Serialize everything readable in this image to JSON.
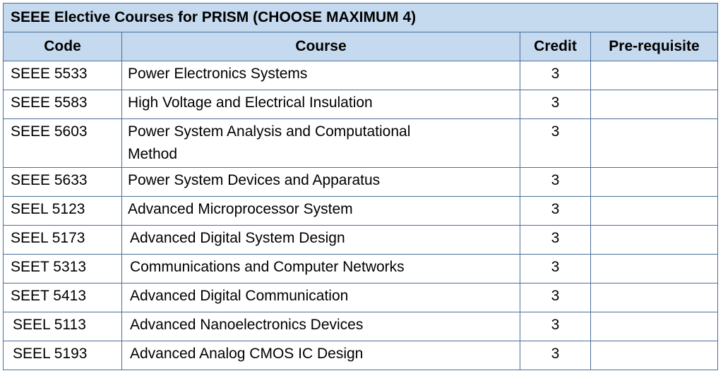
{
  "table": {
    "title": "SEEE Elective Courses for PRISM (CHOOSE MAXIMUM 4)",
    "headers": [
      "Code",
      "Course",
      "Credit",
      "Pre-requisite"
    ],
    "rows": [
      {
        "code": "SEEE 5533",
        "course": "Power Electronics Systems",
        "credit": "3",
        "prereq": ""
      },
      {
        "code": "SEEE 5583",
        "course": "High Voltage and Electrical Insulation",
        "credit": "3",
        "prereq": ""
      },
      {
        "code": "SEEE 5603",
        "course": "Power System Analysis and Computational Method",
        "credit": "3",
        "prereq": ""
      },
      {
        "code": "SEEE 5633",
        "course": "Power System Devices and Apparatus",
        "credit": "3",
        "prereq": ""
      },
      {
        "code": "SEEL 5123",
        "course": "Advanced Microprocessor System",
        "credit": "3",
        "prereq": ""
      },
      {
        "code": "SEEL 5173",
        "course": "Advanced Digital System Design",
        "credit": "3",
        "prereq": ""
      },
      {
        "code": "SEET 5313",
        "course": "Communications and Computer Networks",
        "credit": "3",
        "prereq": ""
      },
      {
        "code": "SEET 5413",
        "course": "Advanced Digital Communication",
        "credit": "3",
        "prereq": ""
      },
      {
        "code": "SEEL 5113",
        "course": "Advanced Nanoelectronics Devices",
        "credit": "3",
        "prereq": ""
      },
      {
        "code": "SEEL 5193",
        "course": "Advanced Analog CMOS IC Design",
        "credit": "3",
        "prereq": ""
      }
    ]
  }
}
